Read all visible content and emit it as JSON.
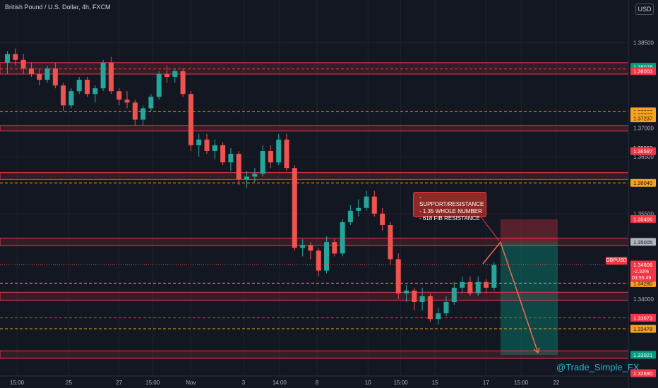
{
  "header": {
    "title": "British Pound / U.S. Dollar, 4h, FXCM",
    "currency": "USD"
  },
  "annotation": {
    "lines": [
      "- SUPPORT/RESISTANCE",
      "- 1.35 WHOLE NUMBER",
      "- 618 FIB RESISTANCE"
    ]
  },
  "watermark": "@Trade_Simple_FX",
  "ticker": "GBPUSD",
  "colors": {
    "up": "#26a69a",
    "down": "#ef5350",
    "zone": "#f23645",
    "level": "#f7a21b",
    "bg": "#131722",
    "grid": "#1e222d",
    "axis_text": "#b2b5be"
  },
  "chart_data": {
    "type": "candlestick",
    "symbol": "British Pound / U.S. Dollar",
    "timeframe": "4h",
    "ylim": [
      1.3265,
      1.3925
    ],
    "y_ticks": [
      {
        "value": 1.385,
        "label": "1.38500"
      },
      {
        "value": 1.37,
        "label": "1.37000"
      },
      {
        "value": 1.365,
        "label": "1.36500"
      },
      {
        "value": 1.355,
        "label": "1.35500"
      },
      {
        "value": 1.34,
        "label": "1.34000"
      }
    ],
    "x_ticks": [
      {
        "index": 1.2,
        "label": "15:00"
      },
      {
        "index": 7.7,
        "label": "25"
      },
      {
        "index": 14.0,
        "label": "27"
      },
      {
        "index": 18.2,
        "label": "15:00"
      },
      {
        "index": 23.0,
        "label": "Nov"
      },
      {
        "index": 29.6,
        "label": "3"
      },
      {
        "index": 34.1,
        "label": "14:00"
      },
      {
        "index": 38.8,
        "label": "8"
      },
      {
        "index": 45.2,
        "label": "10"
      },
      {
        "index": 49.3,
        "label": "15:00"
      },
      {
        "index": 53.6,
        "label": "15"
      },
      {
        "index": 60.0,
        "label": "17"
      },
      {
        "index": 64.4,
        "label": "15:00"
      },
      {
        "index": 68.8,
        "label": "22"
      }
    ],
    "candles": [
      [
        1.3815,
        1.3835,
        1.3795,
        1.383
      ],
      [
        1.383,
        1.384,
        1.381,
        1.382
      ],
      [
        1.382,
        1.383,
        1.3795,
        1.3805
      ],
      [
        1.3805,
        1.3815,
        1.379,
        1.3795
      ],
      [
        1.3795,
        1.3805,
        1.3775,
        1.3785
      ],
      [
        1.3785,
        1.381,
        1.378,
        1.3805
      ],
      [
        1.3805,
        1.3815,
        1.377,
        1.3775
      ],
      [
        1.3775,
        1.378,
        1.373,
        1.374
      ],
      [
        1.374,
        1.377,
        1.3735,
        1.3765
      ],
      [
        1.3765,
        1.379,
        1.376,
        1.3785
      ],
      [
        1.3785,
        1.379,
        1.3755,
        1.376
      ],
      [
        1.376,
        1.3775,
        1.3745,
        1.377
      ],
      [
        1.377,
        1.382,
        1.3765,
        1.3815
      ],
      [
        1.3815,
        1.3825,
        1.376,
        1.3765
      ],
      [
        1.3765,
        1.377,
        1.374,
        1.375
      ],
      [
        1.375,
        1.3765,
        1.3735,
        1.3745
      ],
      [
        1.3745,
        1.375,
        1.3705,
        1.3715
      ],
      [
        1.3715,
        1.374,
        1.3705,
        1.3735
      ],
      [
        1.3735,
        1.376,
        1.373,
        1.3755
      ],
      [
        1.3755,
        1.38,
        1.375,
        1.3795
      ],
      [
        1.3795,
        1.381,
        1.378,
        1.379
      ],
      [
        1.379,
        1.3805,
        1.378,
        1.38
      ],
      [
        1.38,
        1.3805,
        1.3755,
        1.376
      ],
      [
        1.376,
        1.3765,
        1.366,
        1.367
      ],
      [
        1.367,
        1.369,
        1.365,
        1.368
      ],
      [
        1.368,
        1.369,
        1.3655,
        1.366
      ],
      [
        1.366,
        1.368,
        1.3645,
        1.367
      ],
      [
        1.367,
        1.3675,
        1.3635,
        1.364
      ],
      [
        1.364,
        1.3665,
        1.3625,
        1.3655
      ],
      [
        1.3655,
        1.366,
        1.36,
        1.361
      ],
      [
        1.361,
        1.3625,
        1.3595,
        1.3615
      ],
      [
        1.3615,
        1.363,
        1.3605,
        1.362
      ],
      [
        1.362,
        1.367,
        1.3615,
        1.366
      ],
      [
        1.366,
        1.367,
        1.363,
        1.364
      ],
      [
        1.364,
        1.369,
        1.3635,
        1.368
      ],
      [
        1.368,
        1.369,
        1.3625,
        1.363
      ],
      [
        1.363,
        1.3635,
        1.3485,
        1.349
      ],
      [
        1.349,
        1.3505,
        1.3475,
        1.3495
      ],
      [
        1.3495,
        1.35,
        1.347,
        1.3485
      ],
      [
        1.3485,
        1.349,
        1.344,
        1.345
      ],
      [
        1.345,
        1.351,
        1.3445,
        1.35
      ],
      [
        1.35,
        1.3505,
        1.3475,
        1.348
      ],
      [
        1.348,
        1.354,
        1.3475,
        1.3535
      ],
      [
        1.3535,
        1.3565,
        1.353,
        1.3555
      ],
      [
        1.3555,
        1.3575,
        1.3545,
        1.356
      ],
      [
        1.356,
        1.359,
        1.3555,
        1.358
      ],
      [
        1.358,
        1.359,
        1.3545,
        1.355
      ],
      [
        1.355,
        1.356,
        1.352,
        1.353
      ],
      [
        1.353,
        1.3535,
        1.346,
        1.347
      ],
      [
        1.347,
        1.348,
        1.34,
        1.341
      ],
      [
        1.341,
        1.3425,
        1.3395,
        1.3415
      ],
      [
        1.3415,
        1.342,
        1.338,
        1.3395
      ],
      [
        1.3395,
        1.342,
        1.338,
        1.3405
      ],
      [
        1.3405,
        1.341,
        1.336,
        1.3365
      ],
      [
        1.3365,
        1.3385,
        1.3355,
        1.3375
      ],
      [
        1.3375,
        1.3405,
        1.337,
        1.3395
      ],
      [
        1.3395,
        1.343,
        1.339,
        1.342
      ],
      [
        1.342,
        1.344,
        1.341,
        1.343
      ],
      [
        1.343,
        1.344,
        1.3405,
        1.341
      ],
      [
        1.341,
        1.344,
        1.3405,
        1.343
      ],
      [
        1.343,
        1.3435,
        1.341,
        1.342
      ],
      [
        1.342,
        1.3465,
        1.3415,
        1.346
      ]
    ],
    "zones": [
      {
        "top": 1.3815,
        "bottom": 1.3795,
        "color": "#f23645"
      },
      {
        "top": 1.3705,
        "bottom": 1.3695,
        "color": "#f23645"
      },
      {
        "top": 1.3622,
        "bottom": 1.361,
        "color": "#f23645"
      },
      {
        "top": 1.3507,
        "bottom": 1.3494,
        "color": "#f23645"
      },
      {
        "top": 1.3412,
        "bottom": 1.3398,
        "color": "#f23645"
      },
      {
        "top": 1.3309,
        "bottom": 1.3296,
        "color": "#f23645"
      }
    ],
    "levels": [
      {
        "value": 1.3804,
        "color": "#f23645"
      },
      {
        "value": 1.3729,
        "color": "#f7a21b"
      },
      {
        "value": 1.3604,
        "color": "#f7a21b"
      },
      {
        "value": 1.3428,
        "color": "#f7a21b"
      },
      {
        "value": 1.3367,
        "color": "#f23645"
      },
      {
        "value": 1.3348,
        "color": "#f7a21b"
      }
    ],
    "price_labels": [
      {
        "value": 1.38078,
        "label": "1.38078",
        "bg": "#089981"
      },
      {
        "value": 1.38003,
        "label": "1.38003",
        "bg": "#f23645"
      },
      {
        "value": 1.37295,
        "label": "1.37237",
        "bg": "#f7a21b"
      },
      {
        "value": 1.37237,
        "label": "1.37237",
        "bg": "#f7a21b"
      },
      {
        "value": 1.37175,
        "label": "1.37237",
        "bg": "#f7a21b"
      },
      {
        "value": 1.36663,
        "label": "1.36663",
        "bg": "#131722"
      },
      {
        "value": 1.36597,
        "label": "1.36597",
        "bg": "#f23645"
      },
      {
        "value": 1.3604,
        "label": "1.36040",
        "bg": "#f7a21b"
      },
      {
        "value": 1.35406,
        "label": "1.35406",
        "bg": "#f23645"
      },
      {
        "value": 1.35005,
        "label": "1.35005",
        "bg": "#b2b5be"
      },
      {
        "value": 1.34606,
        "label": "1.34606",
        "bg": "#f23645"
      },
      {
        "value": 1.3428,
        "label": "1.34280",
        "bg": "#f7a21b"
      },
      {
        "value": 1.33673,
        "label": "1.33673",
        "bg": "#f23645"
      },
      {
        "value": 1.33478,
        "label": "1.33478",
        "bg": "#f7a21b"
      },
      {
        "value": 1.33021,
        "label": "1.33021",
        "bg": "#089981"
      },
      {
        "value": 1.327,
        "label": "1.32690",
        "bg": "#f23645"
      }
    ],
    "current_price": {
      "value": 1.34606,
      "label": "1.34606",
      "change": "-2.33%",
      "countdown": "03:55:49"
    },
    "position": {
      "start_index": 61.8,
      "end_index": 69.0,
      "entry": 1.35,
      "stop": 1.354,
      "target": 1.3302
    },
    "projection": {
      "from_index": 59.6,
      "from_price": 1.3462,
      "mid_index": 61.8,
      "mid_price": 1.35,
      "to_index": 66.5,
      "to_price": 1.3306
    }
  }
}
